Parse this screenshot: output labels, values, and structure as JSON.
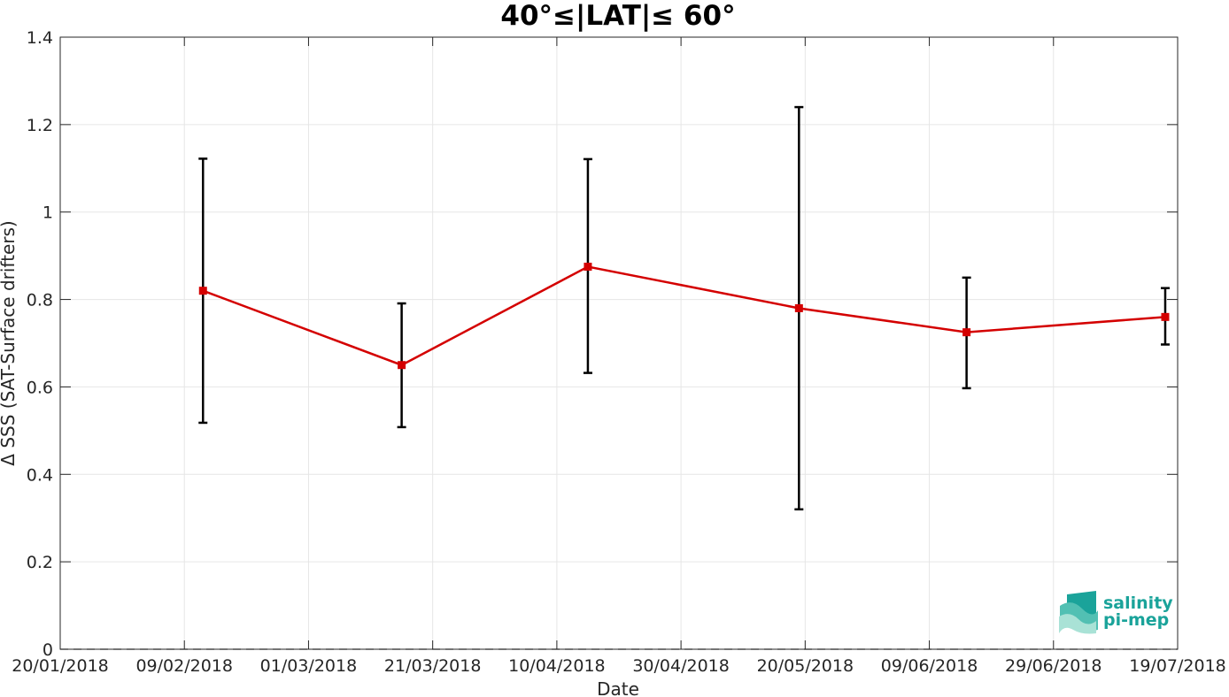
{
  "chart_data": {
    "type": "line",
    "title": "40°≤|LAT|≤ 60°",
    "xlabel": "Date",
    "ylabel": "Δ SSS (SAT-Surface drifters)",
    "x_ticks": [
      "20/01/2018",
      "09/02/2018",
      "01/03/2018",
      "21/03/2018",
      "10/04/2018",
      "30/04/2018",
      "20/05/2018",
      "09/06/2018",
      "29/06/2018",
      "19/07/2018"
    ],
    "x_range": [
      "20/01/2018",
      "19/07/2018"
    ],
    "y_ticks": [
      "0",
      "0.2",
      "0.4",
      "0.6",
      "0.8",
      "1",
      "1.2",
      "1.4"
    ],
    "ylim": [
      0,
      1.4
    ],
    "grid": true,
    "zero_line": "dashed",
    "series": [
      {
        "color": "#d40000",
        "marker": "square",
        "x": [
          "2018-02-12",
          "2018-03-16",
          "2018-04-15",
          "2018-05-19",
          "2018-06-15",
          "2018-07-17"
        ],
        "y": [
          0.82,
          0.65,
          0.875,
          0.78,
          0.725,
          0.76
        ],
        "err_low": [
          0.518,
          0.508,
          0.632,
          0.32,
          0.597,
          0.697
        ],
        "err_high": [
          1.122,
          0.791,
          1.121,
          1.24,
          0.85,
          0.826
        ],
        "err_color": "#000000"
      }
    ]
  },
  "logo": {
    "line1": "salinity",
    "line2": "pi-mep",
    "color": "#1aa39a"
  }
}
